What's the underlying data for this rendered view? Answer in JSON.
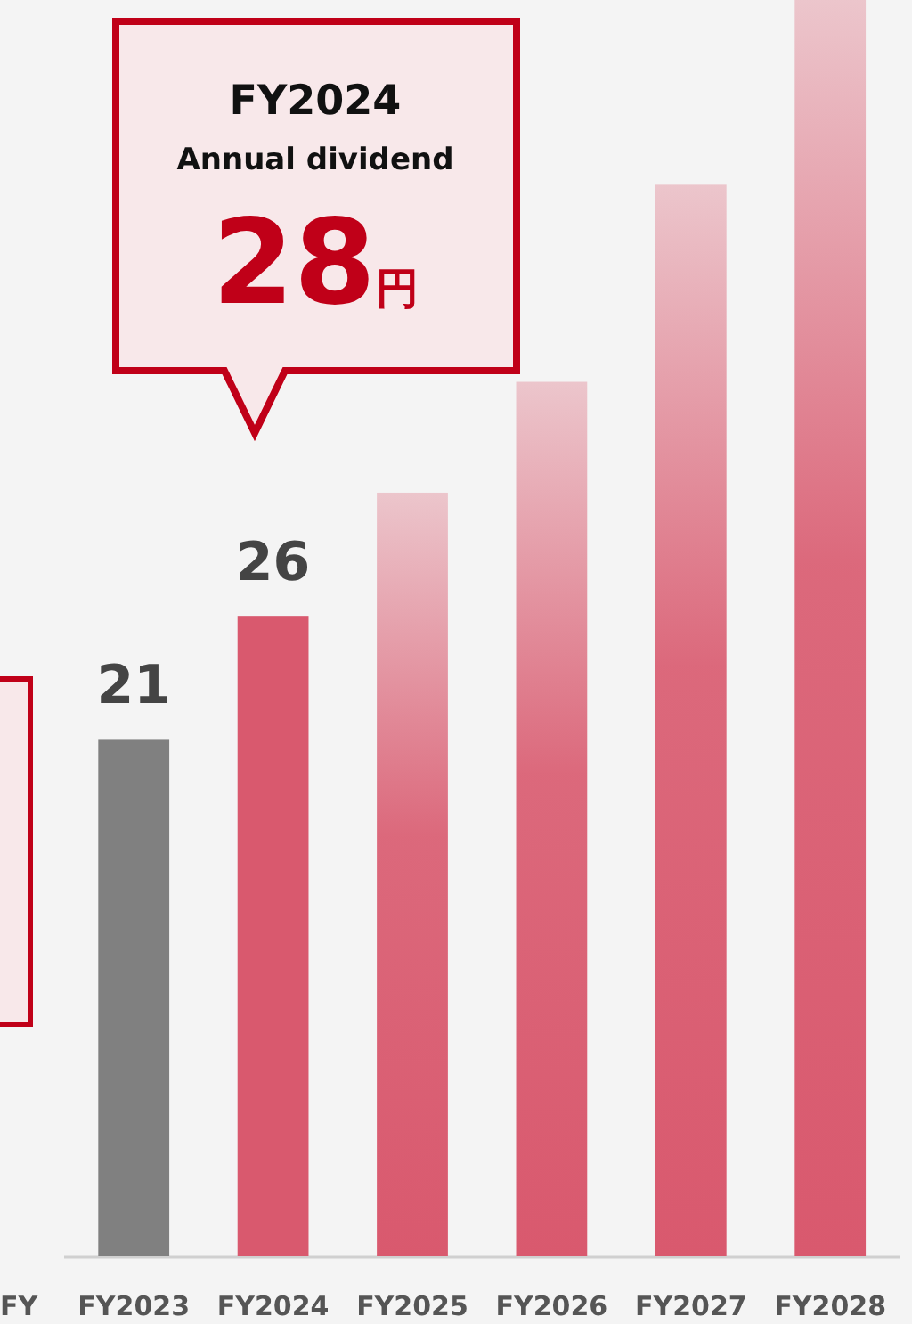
{
  "chart_data": {
    "type": "bar",
    "categories": [
      "FY2023",
      "FY2024",
      "FY2025",
      "FY2026",
      "FY2027",
      "FY2028"
    ],
    "values": [
      21,
      26,
      31,
      35.5,
      43.5,
      51
    ],
    "colors": [
      "#808080",
      "#d9596e",
      "#d9596e",
      "#d9596e",
      "#d9596e",
      "#d9596e"
    ],
    "value_labels": [
      "21",
      "26",
      null,
      null,
      null,
      null
    ],
    "annotations": [
      "FY2024",
      "Annual dividend",
      "28円",
      "FY"
    ]
  }
}
